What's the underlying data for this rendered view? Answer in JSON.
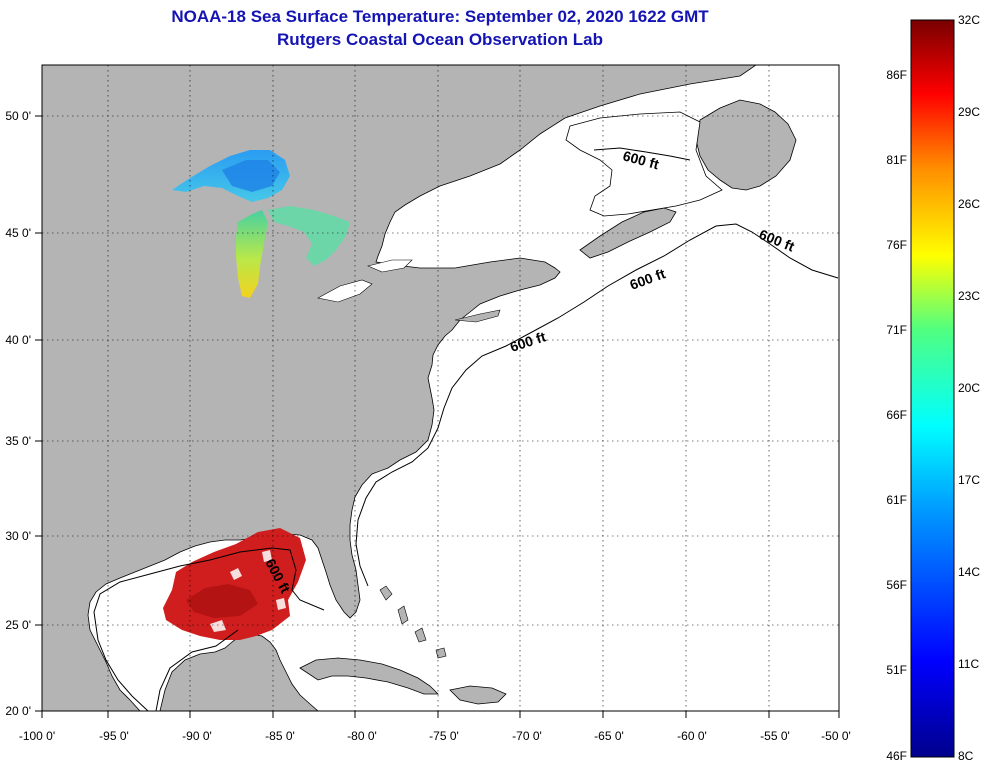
{
  "title": {
    "line1": "NOAA-18 Sea Surface Temperature:  September 02, 2020 1622 GMT",
    "line2": "Rutgers Coastal Ocean Observation Lab"
  },
  "map": {
    "lon_labels": [
      "-100 0'",
      "-95 0'",
      "-90 0'",
      "-85 0'",
      "-80 0'",
      "-75 0'",
      "-70 0'",
      "-65 0'",
      "-60 0'",
      "-55 0'",
      "-50 0'"
    ],
    "lat_labels": [
      "50 0'",
      "45 0'",
      "40 0'",
      "35 0'",
      "30 0'",
      "25 0'",
      "20 0'"
    ],
    "contour_labels": [
      "600 ft",
      "600 ft",
      "600 ft",
      "600 ft",
      "600 ft"
    ],
    "land_color": "#b4b4b4",
    "ocean_color": "#ffffff"
  },
  "colorbar": {
    "celsius": [
      "32C",
      "29C",
      "26C",
      "23C",
      "20C",
      "17C",
      "14C",
      "11C",
      "8C"
    ],
    "fahrenheit": [
      "86F",
      "81F",
      "76F",
      "71F",
      "66F",
      "61F",
      "56F",
      "51F",
      "46F"
    ]
  }
}
